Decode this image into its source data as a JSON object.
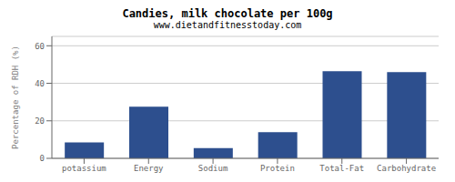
{
  "chart_data": {
    "type": "bar",
    "title": "Candies, milk chocolate per 100g",
    "subtitle": "www.dietandfitnesstoday.com",
    "categories": [
      "potassium",
      "Energy",
      "Sodium",
      "Protein",
      "Total-Fat",
      "Carbohydrate"
    ],
    "values": [
      8.5,
      27.5,
      5.5,
      14.0,
      46.5,
      46.0
    ],
    "color": "#2d4f8e",
    "ylabel": "Percentage of RDH (%)",
    "ylim": [
      0,
      65
    ],
    "yticks": [
      0,
      20,
      40,
      60
    ],
    "grid": true
  }
}
